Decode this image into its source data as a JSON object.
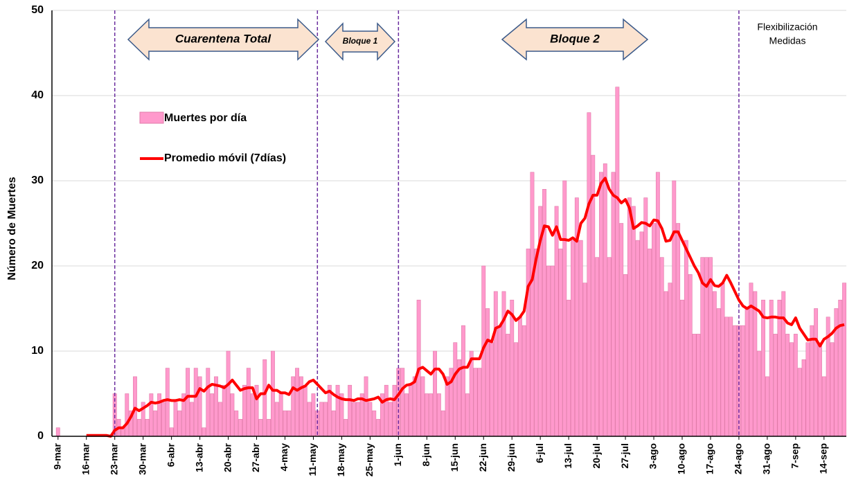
{
  "chart_data": {
    "type": "bar",
    "ylabel": "Número de Muertes",
    "ylim": [
      0,
      50
    ],
    "yticks": [
      0,
      10,
      20,
      30,
      40,
      50
    ],
    "grid": true,
    "annotations": [
      "Cuarentena Total",
      "Bloque 1",
      "Bloque 2",
      [
        "Flexibilización",
        "Medidas"
      ]
    ],
    "categories": [
      null,
      "9-mar",
      null,
      null,
      null,
      null,
      null,
      null,
      "16-mar",
      null,
      null,
      null,
      null,
      null,
      null,
      "23-mar",
      null,
      null,
      null,
      null,
      null,
      null,
      "30-mar",
      null,
      null,
      null,
      null,
      null,
      null,
      "6-abr",
      null,
      null,
      null,
      null,
      null,
      null,
      "13-abr",
      null,
      null,
      null,
      null,
      null,
      null,
      "20-abr",
      null,
      null,
      null,
      null,
      null,
      null,
      "27-abr",
      null,
      null,
      null,
      null,
      null,
      null,
      "4-may",
      null,
      null,
      null,
      null,
      null,
      null,
      "11-may",
      null,
      null,
      null,
      null,
      null,
      null,
      "18-may",
      null,
      null,
      null,
      null,
      null,
      null,
      "25-may",
      null,
      null,
      null,
      null,
      null,
      null,
      "1-jun",
      null,
      null,
      null,
      null,
      null,
      null,
      "8-jun",
      null,
      null,
      null,
      null,
      null,
      null,
      "15-jun",
      null,
      null,
      null,
      null,
      null,
      null,
      "22-jun",
      null,
      null,
      null,
      null,
      null,
      null,
      "29-jun",
      null,
      null,
      null,
      null,
      null,
      null,
      "6-jul",
      null,
      null,
      null,
      null,
      null,
      null,
      "13-jul",
      null,
      null,
      null,
      null,
      null,
      null,
      "20-jul",
      null,
      null,
      null,
      null,
      null,
      null,
      "27-jul",
      null,
      null,
      null,
      null,
      null,
      null,
      "3-ago",
      null,
      null,
      null,
      null,
      null,
      null,
      "10-ago",
      null,
      null,
      null,
      null,
      null,
      null,
      "17-ago",
      null,
      null,
      null,
      null,
      null,
      null,
      "24-ago",
      null,
      null,
      null,
      null,
      null,
      null,
      "31-ago",
      null,
      null,
      null,
      null,
      null,
      null,
      "7-sep",
      null,
      null,
      null,
      null,
      null,
      null,
      "14-sep",
      null,
      null,
      null,
      null,
      null
    ],
    "series": [
      {
        "name": "Muertes por día",
        "type": "bar",
        "color": "#ff99cc",
        "values": [
          0,
          1,
          0,
          0,
          0,
          0,
          0,
          0,
          0,
          0,
          0,
          0,
          0,
          0,
          0,
          5,
          2,
          1,
          5,
          3,
          7,
          2,
          4,
          2,
          5,
          3,
          5,
          4,
          8,
          1,
          4,
          3,
          5,
          8,
          4,
          8,
          7,
          1,
          8,
          5,
          7,
          4,
          6,
          10,
          5,
          3,
          2,
          6,
          8,
          5,
          6,
          2,
          9,
          2,
          10,
          4,
          5,
          3,
          3,
          7,
          8,
          7,
          6,
          4,
          5,
          3,
          4,
          4,
          6,
          3,
          6,
          5,
          2,
          6,
          4,
          4,
          5,
          7,
          4,
          3,
          2,
          5,
          6,
          4,
          6,
          8,
          8,
          5,
          6,
          7,
          16,
          7,
          5,
          5,
          10,
          5,
          3,
          7,
          8,
          11,
          9,
          13,
          5,
          10,
          8,
          8,
          20,
          15,
          11,
          17,
          13,
          17,
          12,
          16,
          11,
          14,
          13,
          22,
          31,
          22,
          27,
          29,
          20,
          20,
          27,
          22,
          30,
          16,
          23,
          28,
          23,
          18,
          38,
          33,
          21,
          31,
          32,
          21,
          31,
          41,
          25,
          19,
          28,
          27,
          23,
          24,
          28,
          22,
          25,
          31,
          21,
          17,
          18,
          30,
          25,
          16,
          23,
          19,
          12,
          12,
          21,
          21,
          21,
          17,
          15,
          18,
          14,
          14,
          13,
          13,
          13,
          15,
          18,
          17,
          10,
          16,
          7,
          16,
          12,
          16,
          17,
          12,
          11,
          12,
          8,
          9,
          11,
          13,
          15,
          11,
          7,
          14,
          11,
          15,
          16,
          18
        ]
      },
      {
        "name": "Promedio móvil (7días)",
        "type": "line",
        "color": "#ff0000",
        "values": [
          null,
          null,
          null,
          null,
          null,
          null,
          null,
          null,
          0.1,
          0.1,
          0.1,
          0.1,
          0.1,
          0.1,
          0,
          0.7,
          1,
          1,
          1.5,
          2.3,
          3.3,
          3,
          3.3,
          3.6,
          4,
          3.9,
          4,
          4.2,
          4.3,
          4.2,
          4.2,
          4.3,
          4.2,
          4.7,
          4.7,
          4.7,
          5.6,
          5.3,
          5.8,
          6.1,
          6,
          5.9,
          5.7,
          6.1,
          6.6,
          6,
          5.4,
          5.6,
          5.7,
          5.7,
          4.4,
          5,
          5,
          6,
          5.4,
          5.4,
          5.1,
          5.1,
          4.9,
          5.7,
          5.4,
          5.7,
          5.9,
          6.4,
          6.6,
          6.1,
          5.6,
          5.1,
          5.3,
          4.9,
          4.6,
          4.4,
          4.3,
          4.3,
          4.2,
          4.4,
          4.4,
          4.2,
          4.3,
          4.4,
          4.6,
          4,
          4.3,
          4.4,
          4.3,
          4.9,
          5.6,
          6,
          6.1,
          6.4,
          7.9,
          8.1,
          7.7,
          7.3,
          7.9,
          7.9,
          7.3,
          6.1,
          6.4,
          7.3,
          7.9,
          8.1,
          8.1,
          9.1,
          9.1,
          9.1,
          10.4,
          11.3,
          11.1,
          12.7,
          12.9,
          13.7,
          14.7,
          14.3,
          13.6,
          14,
          14.7,
          17.6,
          18.4,
          20.9,
          23,
          24.7,
          24.6,
          23.6,
          24.6,
          23.1,
          23.1,
          23,
          23.3,
          22.9,
          25,
          25.6,
          27.3,
          28.3,
          28.3,
          29.7,
          30.3,
          29,
          28.3,
          28,
          27.4,
          27.8,
          26.8,
          24.4,
          24.7,
          25.1,
          25,
          24.7,
          25.4,
          25.3,
          24.4,
          22.9,
          23,
          24,
          24,
          23,
          22,
          21,
          20,
          19.2,
          18,
          17.6,
          18.4,
          17.7,
          17.6,
          18,
          18.9,
          18,
          17,
          16,
          15.3,
          15,
          15.3,
          15,
          14.7,
          14,
          13.9,
          14,
          14,
          13.9,
          13.9,
          13.3,
          13.1,
          13.9,
          12.7,
          12,
          11.3,
          11.4,
          11.4,
          10.6,
          11.4,
          11.7,
          12.1,
          12.7,
          13,
          13.1
        ]
      }
    ]
  }
}
